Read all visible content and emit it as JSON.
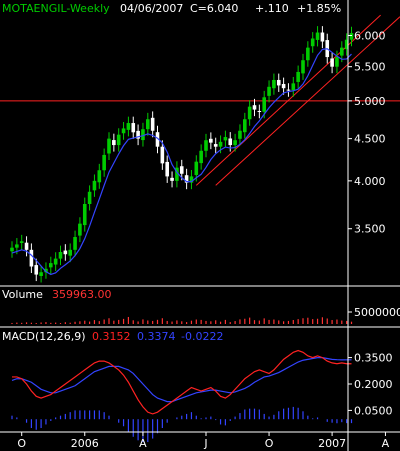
{
  "header": {
    "symbol": "MOTAENGIL-Weekly",
    "date": "04/06/2007",
    "close": "C=6.040",
    "change": "+.110",
    "change_pct": "+1.85%"
  },
  "colors": {
    "background": "#000000",
    "up_candle": "#00cc00",
    "down_candle": "#ffffff",
    "moving_average": "#3344ff",
    "trend_line": "#ff2222",
    "volume": "#ff3333",
    "macd": "#ff2222",
    "signal": "#3344ff",
    "histogram": "#3344ff",
    "axis_text": "#ffffff",
    "header_symbol": "#00cc00",
    "header_text": "#ffffff"
  },
  "chart_data": [
    {
      "type": "candlestick",
      "name": "price",
      "ylim": [
        3.0,
        6.3
      ],
      "yscale": "log",
      "yticks": [
        3.5,
        4.0,
        4.5,
        5.0,
        5.5,
        6.0
      ],
      "ytick_labels": [
        "3.500",
        "4.000",
        "4.500",
        "5.000",
        "5.500",
        "6.000"
      ],
      "xlabels": [
        "O",
        "2006",
        "A",
        "J",
        "O",
        "2007",
        "A"
      ],
      "xlabel_weeks": [
        2,
        15,
        27,
        40,
        53,
        66,
        77
      ],
      "horizontal_line": 5.0,
      "channel": {
        "upper": [
          [
            38,
            3.95
          ],
          [
            76,
            6.35
          ]
        ],
        "lower": [
          [
            42,
            3.95
          ],
          [
            80,
            6.2
          ]
        ]
      },
      "closes": [
        3.32,
        3.35,
        3.38,
        3.3,
        3.15,
        3.08,
        3.1,
        3.13,
        3.18,
        3.22,
        3.28,
        3.26,
        3.3,
        3.42,
        3.55,
        3.75,
        3.88,
        4.0,
        4.12,
        4.3,
        4.5,
        4.42,
        4.55,
        4.63,
        4.7,
        4.58,
        4.5,
        4.62,
        4.75,
        4.6,
        4.4,
        4.2,
        4.05,
        4.0,
        4.15,
        4.08,
        3.98,
        4.05,
        4.22,
        4.35,
        4.48,
        4.45,
        4.4,
        4.46,
        4.52,
        4.42,
        4.48,
        4.6,
        4.75,
        4.92,
        4.88,
        4.85,
        5.05,
        5.2,
        5.3,
        5.22,
        5.18,
        5.15,
        5.25,
        5.42,
        5.6,
        5.8,
        5.95,
        6.05,
        5.9,
        5.65,
        5.5,
        5.65,
        5.8,
        5.93,
        6.04
      ],
      "moving_average_period": 5
    },
    {
      "type": "bar",
      "name": "volume",
      "label": "Volume",
      "value_label": "359963.00",
      "ylim": [
        0,
        11000000
      ],
      "yticks": [
        5000000
      ],
      "ytick_labels": [
        "5000000"
      ],
      "values": [
        160000,
        220000,
        180000,
        260000,
        200000,
        150000,
        240000,
        300000,
        180000,
        220000,
        150000,
        280000,
        200000,
        350000,
        420000,
        520000,
        380000,
        610000,
        450000,
        700000,
        900000,
        520000,
        640000,
        800000,
        1100000,
        580000,
        400000,
        720000,
        550000,
        480000,
        650000,
        900000,
        480000,
        380000,
        560000,
        420000,
        300000,
        520000,
        700000,
        640000,
        480000,
        420000,
        580000,
        360000,
        640000,
        300000,
        460000,
        720000,
        820000,
        1000000,
        600000,
        540000,
        880000,
        640000,
        700000,
        560000,
        420000,
        480000,
        620000,
        760000,
        900000,
        980000,
        760000,
        820000,
        1050000,
        860000,
        620000,
        700000,
        540000,
        480000,
        359963
      ]
    },
    {
      "type": "line",
      "name": "macd",
      "label": "MACD(12,26,9)",
      "values_label": [
        "0.3152",
        "0.3374",
        "-0.0222"
      ],
      "ylim": [
        -0.05,
        0.45
      ],
      "yticks": [
        0.05,
        0.2,
        0.35
      ],
      "ytick_labels": [
        "0.0500",
        "0.2000",
        "0.3500"
      ],
      "macd": [
        0.24,
        0.24,
        0.23,
        0.2,
        0.16,
        0.13,
        0.12,
        0.13,
        0.14,
        0.16,
        0.18,
        0.2,
        0.22,
        0.24,
        0.26,
        0.28,
        0.3,
        0.32,
        0.33,
        0.33,
        0.32,
        0.3,
        0.28,
        0.25,
        0.21,
        0.16,
        0.11,
        0.07,
        0.04,
        0.03,
        0.04,
        0.06,
        0.08,
        0.1,
        0.12,
        0.14,
        0.16,
        0.18,
        0.17,
        0.16,
        0.17,
        0.18,
        0.16,
        0.13,
        0.12,
        0.14,
        0.17,
        0.2,
        0.23,
        0.25,
        0.27,
        0.28,
        0.27,
        0.26,
        0.28,
        0.31,
        0.34,
        0.36,
        0.38,
        0.39,
        0.38,
        0.36,
        0.35,
        0.36,
        0.35,
        0.33,
        0.32,
        0.315,
        0.32,
        0.315,
        0.3152
      ],
      "signal": [
        0.22,
        0.23,
        0.23,
        0.22,
        0.21,
        0.19,
        0.17,
        0.16,
        0.15,
        0.15,
        0.16,
        0.17,
        0.18,
        0.19,
        0.21,
        0.23,
        0.25,
        0.27,
        0.28,
        0.29,
        0.3,
        0.3,
        0.3,
        0.29,
        0.28,
        0.26,
        0.23,
        0.2,
        0.17,
        0.14,
        0.12,
        0.11,
        0.1,
        0.1,
        0.11,
        0.12,
        0.13,
        0.14,
        0.15,
        0.155,
        0.16,
        0.165,
        0.165,
        0.16,
        0.155,
        0.15,
        0.155,
        0.165,
        0.175,
        0.19,
        0.21,
        0.225,
        0.24,
        0.245,
        0.255,
        0.265,
        0.28,
        0.295,
        0.31,
        0.325,
        0.335,
        0.34,
        0.345,
        0.35,
        0.35,
        0.345,
        0.34,
        0.338,
        0.337,
        0.3374,
        0.3374
      ]
    }
  ]
}
